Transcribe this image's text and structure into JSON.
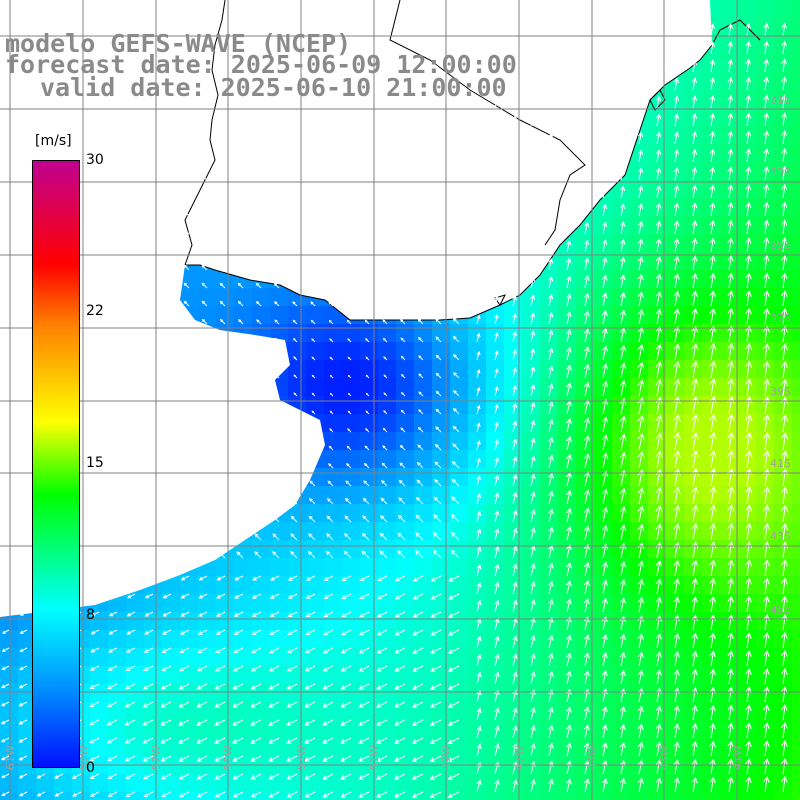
{
  "title": {
    "line1": "modelo GEFS-WAVE (NCEP)",
    "line2": "forecast date: 2025-06-09 12:00:00",
    "line3": "valid date: 2025-06-10 21:00:00"
  },
  "legend": {
    "unit": "[m/s]",
    "ticks": [
      "30",
      "22",
      "15",
      "8",
      "0"
    ],
    "tick_values": [
      30,
      22,
      15,
      8,
      0
    ],
    "range": [
      0,
      30
    ],
    "colors": [
      "#0010ff",
      "#0090ff",
      "#00ffff",
      "#00ff00",
      "#ffff00",
      "#ff8000",
      "#ff0000",
      "#c00090"
    ]
  },
  "map": {
    "field": "wind speed with direction arrows",
    "land_color": "#ffffff",
    "grid_color": "#808080",
    "coast_color": "#000000",
    "arrow_color": "#ffffff",
    "lon_labels": [
      "61W",
      "59W",
      "57W",
      "55W",
      "53W",
      "51W",
      "49W",
      "47W",
      "45W",
      "43W",
      "41W"
    ],
    "lat_labels": [
      "31S",
      "33S",
      "35S",
      "37S",
      "39S",
      "41S",
      "43S",
      "45S"
    ]
  }
}
